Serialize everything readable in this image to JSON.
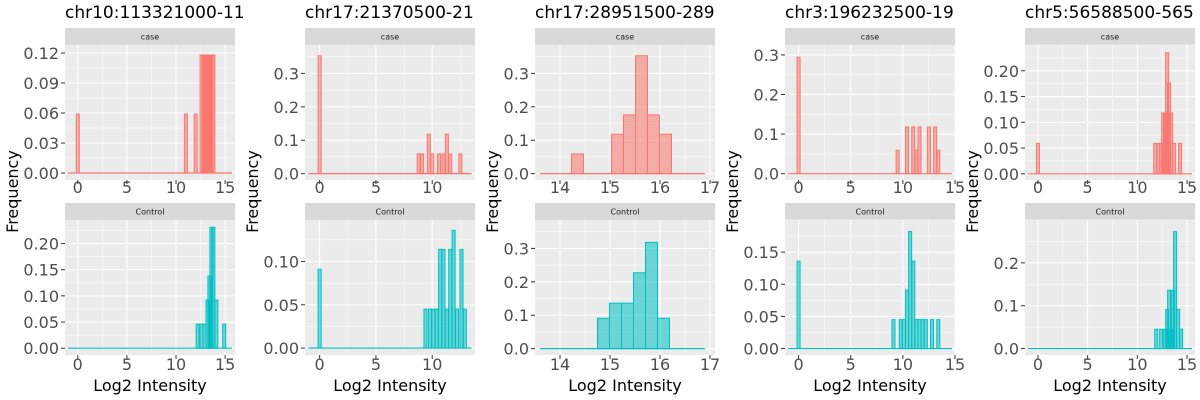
{
  "chart_data": [
    {
      "type": "bar",
      "title": "chr10:113321000-11",
      "xlabel": "Log2 Intensity",
      "ylabel": "Frequency",
      "xlim": [
        -1.3,
        16
      ],
      "xticks": [
        0,
        5,
        10,
        15
      ],
      "panels": [
        {
          "label": "case",
          "color": "#F8766D",
          "ylim": [
            -0.007,
            0.128
          ],
          "yticks": [
            "0.00",
            "0.03",
            "0.06",
            "0.09",
            "0.12"
          ],
          "bars": [
            {
              "x": 0,
              "y": 0.059
            },
            {
              "x": 11,
              "y": 0.059
            },
            {
              "x": 12,
              "y": 0.059
            },
            {
              "x": 12.6,
              "y": 0.118
            },
            {
              "x": 12.8,
              "y": 0.118
            },
            {
              "x": 13.0,
              "y": 0.118
            },
            {
              "x": 13.2,
              "y": 0.118
            },
            {
              "x": 13.4,
              "y": 0.118
            },
            {
              "x": 13.6,
              "y": 0.118
            },
            {
              "x": 13.8,
              "y": 0.118
            }
          ]
        },
        {
          "label": "Control",
          "color": "#00BFC4",
          "ylim": [
            -0.013,
            0.245
          ],
          "yticks": [
            "0.00",
            "0.05",
            "0.10",
            "0.15",
            "0.20"
          ],
          "bars": [
            {
              "x": 12.2,
              "y": 0.046
            },
            {
              "x": 12.6,
              "y": 0.046
            },
            {
              "x": 12.9,
              "y": 0.046
            },
            {
              "x": 13.2,
              "y": 0.092
            },
            {
              "x": 13.4,
              "y": 0.138
            },
            {
              "x": 13.6,
              "y": 0.231
            },
            {
              "x": 13.8,
              "y": 0.231
            },
            {
              "x": 14.1,
              "y": 0.092
            },
            {
              "x": 14.9,
              "y": 0.046
            }
          ]
        }
      ]
    },
    {
      "type": "bar",
      "title": "chr17:21370500-21",
      "xlabel": "Log2 Intensity",
      "ylabel": "Frequency",
      "xlim": [
        -1.3,
        13.8
      ],
      "xticks": [
        0,
        5,
        10
      ],
      "panels": [
        {
          "label": "case",
          "color": "#F8766D",
          "ylim": [
            -0.019,
            0.385
          ],
          "yticks": [
            "0.0",
            "0.1",
            "0.2",
            "0.3"
          ],
          "bars": [
            {
              "x": 0,
              "y": 0.353
            },
            {
              "x": 8.8,
              "y": 0.059
            },
            {
              "x": 9.1,
              "y": 0.059
            },
            {
              "x": 9.7,
              "y": 0.118
            },
            {
              "x": 10.0,
              "y": 0.059
            },
            {
              "x": 10.6,
              "y": 0.059
            },
            {
              "x": 11.0,
              "y": 0.059
            },
            {
              "x": 11.3,
              "y": 0.118
            },
            {
              "x": 11.6,
              "y": 0.059
            },
            {
              "x": 12.5,
              "y": 0.059
            }
          ]
        },
        {
          "label": "Control",
          "color": "#00BFC4",
          "ylim": [
            -0.008,
            0.148
          ],
          "yticks": [
            "0.00",
            "0.05",
            "0.10"
          ],
          "bars": [
            {
              "x": 0,
              "y": 0.091
            },
            {
              "x": 9.4,
              "y": 0.045
            },
            {
              "x": 9.8,
              "y": 0.045
            },
            {
              "x": 10.1,
              "y": 0.045
            },
            {
              "x": 10.4,
              "y": 0.045
            },
            {
              "x": 10.7,
              "y": 0.114
            },
            {
              "x": 11.0,
              "y": 0.114
            },
            {
              "x": 11.3,
              "y": 0.045
            },
            {
              "x": 11.6,
              "y": 0.114
            },
            {
              "x": 11.9,
              "y": 0.136
            },
            {
              "x": 12.2,
              "y": 0.045
            },
            {
              "x": 12.6,
              "y": 0.114
            },
            {
              "x": 12.9,
              "y": 0.045
            }
          ]
        }
      ]
    },
    {
      "type": "bar",
      "title": "chr17:28951500-289",
      "xlabel": "Log2 Intensity",
      "ylabel": "Frequency",
      "xlim": [
        13.5,
        17.1
      ],
      "xticks": [
        14,
        15,
        16,
        17
      ],
      "baseline": [
        13.6,
        16.9
      ],
      "panels": [
        {
          "label": "case",
          "color": "#F8766D",
          "ylim": [
            -0.019,
            0.385
          ],
          "yticks": [
            "0.0",
            "0.1",
            "0.2",
            "0.3"
          ],
          "binwidth": 0.24,
          "bars": [
            {
              "x": 14.35,
              "y": 0.059
            },
            {
              "x": 15.15,
              "y": 0.118
            },
            {
              "x": 15.39,
              "y": 0.176
            },
            {
              "x": 15.63,
              "y": 0.353
            },
            {
              "x": 15.87,
              "y": 0.176
            },
            {
              "x": 16.11,
              "y": 0.118
            }
          ]
        },
        {
          "label": "Control",
          "color": "#00BFC4",
          "ylim": [
            -0.019,
            0.385
          ],
          "yticks": [
            "0.0",
            "0.1",
            "0.2",
            "0.3"
          ],
          "binwidth": 0.24,
          "bars": [
            {
              "x": 14.87,
              "y": 0.091
            },
            {
              "x": 15.11,
              "y": 0.136
            },
            {
              "x": 15.35,
              "y": 0.136
            },
            {
              "x": 15.59,
              "y": 0.227
            },
            {
              "x": 15.83,
              "y": 0.318
            },
            {
              "x": 16.07,
              "y": 0.091
            }
          ]
        }
      ]
    },
    {
      "type": "bar",
      "title": "chr3:196232500-19",
      "xlabel": "Log2 Intensity",
      "ylabel": "Frequency",
      "xlim": [
        -1.3,
        15
      ],
      "xticks": [
        0,
        5,
        10,
        15
      ],
      "panels": [
        {
          "label": "case",
          "color": "#F8766D",
          "ylim": [
            -0.016,
            0.325
          ],
          "yticks": [
            "0.0",
            "0.1",
            "0.2",
            "0.3"
          ],
          "bars": [
            {
              "x": 0,
              "y": 0.294
            },
            {
              "x": 9.5,
              "y": 0.059
            },
            {
              "x": 10.4,
              "y": 0.118
            },
            {
              "x": 11.0,
              "y": 0.118
            },
            {
              "x": 11.3,
              "y": 0.059
            },
            {
              "x": 11.6,
              "y": 0.118
            },
            {
              "x": 12.5,
              "y": 0.118
            },
            {
              "x": 13.1,
              "y": 0.118
            },
            {
              "x": 13.4,
              "y": 0.059
            }
          ]
        },
        {
          "label": "Control",
          "color": "#00BFC4",
          "ylim": [
            -0.01,
            0.2
          ],
          "yticks": [
            "0.00",
            "0.05",
            "0.10",
            "0.15"
          ],
          "bars": [
            {
              "x": 0,
              "y": 0.136
            },
            {
              "x": 9.1,
              "y": 0.045
            },
            {
              "x": 9.8,
              "y": 0.045
            },
            {
              "x": 10.1,
              "y": 0.045
            },
            {
              "x": 10.4,
              "y": 0.091
            },
            {
              "x": 10.7,
              "y": 0.182
            },
            {
              "x": 11.0,
              "y": 0.136
            },
            {
              "x": 11.3,
              "y": 0.045
            },
            {
              "x": 11.6,
              "y": 0.045
            },
            {
              "x": 11.9,
              "y": 0.045
            },
            {
              "x": 12.2,
              "y": 0.045
            },
            {
              "x": 12.8,
              "y": 0.045
            },
            {
              "x": 13.4,
              "y": 0.045
            }
          ]
        }
      ]
    },
    {
      "type": "bar",
      "title": "chr5:56588500-565",
      "xlabel": "Log2 Intensity",
      "ylabel": "Frequency",
      "xlim": [
        -1.3,
        15.8
      ],
      "xticks": [
        0,
        5,
        10,
        15
      ],
      "panels": [
        {
          "label": "case",
          "color": "#F8766D",
          "ylim": [
            -0.012,
            0.25
          ],
          "yticks": [
            "0.00",
            "0.05",
            "0.10",
            "0.15",
            "0.20"
          ],
          "bars": [
            {
              "x": 0,
              "y": 0.059
            },
            {
              "x": 11.8,
              "y": 0.059
            },
            {
              "x": 12.1,
              "y": 0.059
            },
            {
              "x": 12.4,
              "y": 0.059
            },
            {
              "x": 12.6,
              "y": 0.118
            },
            {
              "x": 12.8,
              "y": 0.118
            },
            {
              "x": 13.0,
              "y": 0.235
            },
            {
              "x": 13.2,
              "y": 0.176
            },
            {
              "x": 13.4,
              "y": 0.118
            },
            {
              "x": 13.7,
              "y": 0.059
            },
            {
              "x": 14.3,
              "y": 0.059
            }
          ]
        },
        {
          "label": "Control",
          "color": "#00BFC4",
          "ylim": [
            -0.015,
            0.3
          ],
          "yticks": [
            "0.0",
            "0.1",
            "0.2"
          ],
          "bars": [
            {
              "x": 11.9,
              "y": 0.045
            },
            {
              "x": 12.4,
              "y": 0.045
            },
            {
              "x": 12.8,
              "y": 0.045
            },
            {
              "x": 13.0,
              "y": 0.091
            },
            {
              "x": 13.2,
              "y": 0.136
            },
            {
              "x": 13.4,
              "y": 0.045
            },
            {
              "x": 13.6,
              "y": 0.136
            },
            {
              "x": 13.8,
              "y": 0.273
            },
            {
              "x": 14.1,
              "y": 0.091
            },
            {
              "x": 14.4,
              "y": 0.045
            }
          ]
        }
      ]
    }
  ]
}
